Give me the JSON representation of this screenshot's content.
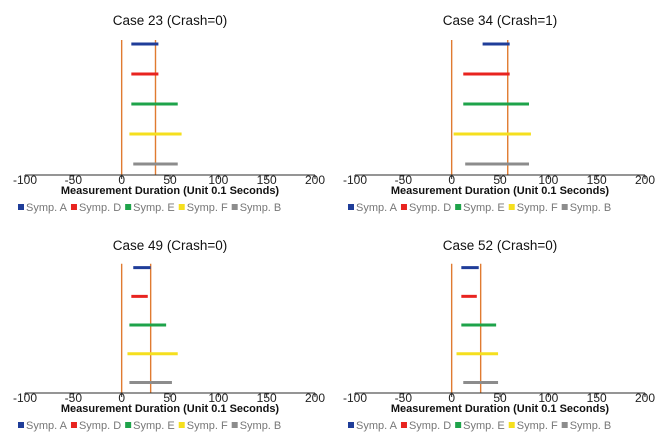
{
  "chart_data": [
    {
      "type": "range-bar",
      "title": "Case 23 (Crash=0)",
      "xlabel": "Measurement Duration (Unit 0.1 Seconds)",
      "xlim": [
        -100,
        200
      ],
      "xticks": [
        "-100",
        "-50",
        "0",
        "50",
        "100",
        "150",
        "200"
      ],
      "vlines": [
        0,
        35
      ],
      "series": [
        {
          "name": "Symp. A",
          "color": "#1f3d99",
          "start": 10,
          "end": 38
        },
        {
          "name": "Symp. D",
          "color": "#e8231f",
          "start": 10,
          "end": 38
        },
        {
          "name": "Symp. E",
          "color": "#1ea34a",
          "start": 10,
          "end": 58
        },
        {
          "name": "Symp. F",
          "color": "#f5df1e",
          "start": 8,
          "end": 62
        },
        {
          "name": "Symp. B",
          "color": "#8c8c8c",
          "start": 12,
          "end": 58
        }
      ]
    },
    {
      "type": "range-bar",
      "title": "Case 34 (Crash=1)",
      "xlabel": "Measurement Duration (Unit 0.1 Seconds)",
      "xlim": [
        -100,
        200
      ],
      "xticks": [
        "-100",
        "-50",
        "0",
        "50",
        "100",
        "150",
        "200"
      ],
      "vlines": [
        0,
        58
      ],
      "series": [
        {
          "name": "Symp. A",
          "color": "#1f3d99",
          "start": 32,
          "end": 60
        },
        {
          "name": "Symp. D",
          "color": "#e8231f",
          "start": 12,
          "end": 60
        },
        {
          "name": "Symp. E",
          "color": "#1ea34a",
          "start": 12,
          "end": 80
        },
        {
          "name": "Symp. F",
          "color": "#f5df1e",
          "start": 2,
          "end": 82
        },
        {
          "name": "Symp. B",
          "color": "#8c8c8c",
          "start": 14,
          "end": 80
        }
      ]
    },
    {
      "type": "range-bar",
      "title": "Case 49 (Crash=0)",
      "xlabel": "Measurement Duration (Unit 0.1 Seconds)",
      "xlim": [
        -100,
        200
      ],
      "xticks": [
        "-100",
        "-50",
        "0",
        "50",
        "100",
        "150",
        "200"
      ],
      "vlines": [
        0,
        30
      ],
      "series": [
        {
          "name": "Symp. A",
          "color": "#1f3d99",
          "start": 12,
          "end": 30
        },
        {
          "name": "Symp. D",
          "color": "#e8231f",
          "start": 10,
          "end": 27
        },
        {
          "name": "Symp. E",
          "color": "#1ea34a",
          "start": 8,
          "end": 46
        },
        {
          "name": "Symp. F",
          "color": "#f5df1e",
          "start": 6,
          "end": 58
        },
        {
          "name": "Symp. B",
          "color": "#8c8c8c",
          "start": 8,
          "end": 52
        }
      ]
    },
    {
      "type": "range-bar",
      "title": "Case 52 (Crash=0)",
      "xlabel": "Measurement Duration (Unit 0.1 Seconds)",
      "xlim": [
        -100,
        200
      ],
      "xticks": [
        "-100",
        "-50",
        "0",
        "50",
        "100",
        "150",
        "200"
      ],
      "vlines": [
        0,
        30
      ],
      "series": [
        {
          "name": "Symp. A",
          "color": "#1f3d99",
          "start": 10,
          "end": 28
        },
        {
          "name": "Symp. D",
          "color": "#e8231f",
          "start": 10,
          "end": 26
        },
        {
          "name": "Symp. E",
          "color": "#1ea34a",
          "start": 10,
          "end": 46
        },
        {
          "name": "Symp. F",
          "color": "#f5df1e",
          "start": 5,
          "end": 48
        },
        {
          "name": "Symp. B",
          "color": "#8c8c8c",
          "start": 12,
          "end": 48
        }
      ]
    }
  ],
  "colors": {
    "axis": "#2b2b2b",
    "vline": "#e07b30"
  }
}
